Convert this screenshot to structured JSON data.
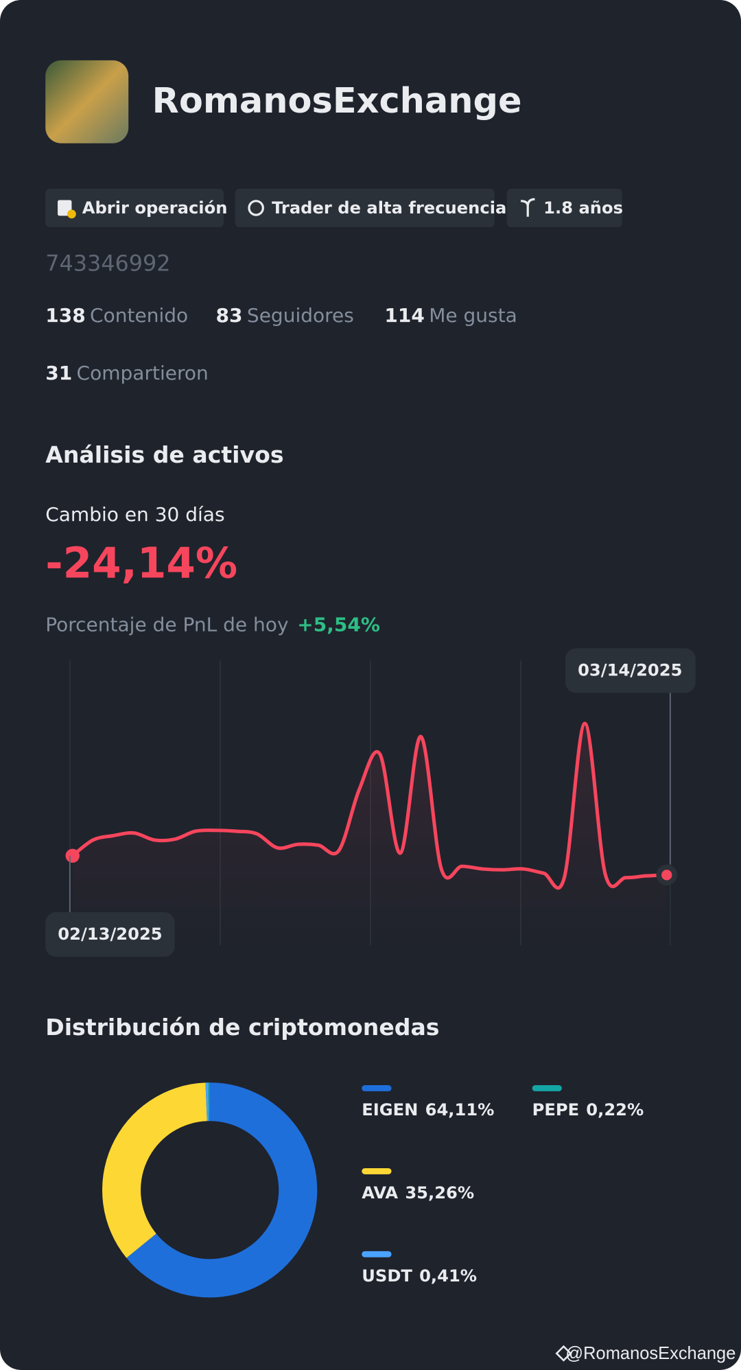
{
  "header": {
    "name": "RomanosExchange",
    "tags": [
      "Abrir operación",
      "Trader de alta frecuencia",
      "1.8 años"
    ],
    "user_id": "743346992",
    "stats": [
      {
        "value": 138,
        "label": "Contenido"
      },
      {
        "value": 83,
        "label": "Seguidores"
      },
      {
        "value": 114,
        "label": "Me gusta"
      },
      {
        "value": 31,
        "label": "Compartieron"
      }
    ]
  },
  "analysis": {
    "title": "Análisis de activos",
    "change_label": "Cambio en 30 días",
    "change_value": "-24,14%",
    "pnl_label": "Porcentaje de PnL de hoy",
    "pnl_value": "+5,54%"
  },
  "chart_data": [
    {
      "type": "line",
      "color": "#f6465d",
      "categories": [
        "02/13/2025",
        null,
        null,
        null,
        null,
        null,
        null,
        null,
        null,
        null,
        null,
        null,
        null,
        null,
        null,
        null,
        null,
        null,
        null,
        null,
        null,
        null,
        null,
        null,
        null,
        null,
        null,
        null,
        null,
        "03/14/2025"
      ],
      "values": [
        0,
        19.7,
        25.2,
        28.5,
        19.7,
        20.8,
        30.7,
        31.8,
        30.7,
        27.4,
        9.9,
        14.3,
        13.2,
        6.6,
        83.4,
        127.3,
        3.3,
        149.2,
        -16.5,
        -13.2,
        -16.5,
        -17.6,
        -16.5,
        -21.9,
        -27.4,
        165.6,
        -23.0,
        -27.4,
        -25.2,
        -24.1
      ],
      "ylim": [
        -110,
        240
      ]
    },
    {
      "type": "donut",
      "title": "Distribución de criptomonedas",
      "categories": [
        "EIGEN",
        "AVA",
        "USDT",
        "PEPE"
      ],
      "values": [
        64.11,
        35.26,
        0.41,
        0.22
      ],
      "value_labels": [
        "64,11%",
        "35,26%",
        "0,41%",
        "0,22%"
      ],
      "colors": [
        "#1f6fdb",
        "#fdd835",
        "#4aa3ff",
        "#14a5a5"
      ]
    }
  ],
  "footer": "@RomanosExchange"
}
